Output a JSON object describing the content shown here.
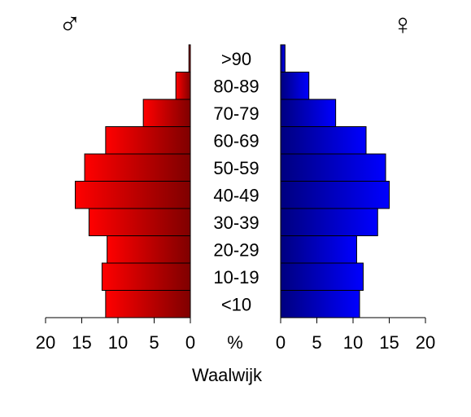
{
  "chart_data": {
    "type": "bar",
    "orientation": "horizontal",
    "subtype": "population-pyramid",
    "title": "Waalwijk",
    "axis_unit_label": "%",
    "categories": [
      "<10",
      "10-19",
      "20-29",
      "30-39",
      "40-49",
      "50-59",
      "60-69",
      "70-79",
      "80-89",
      ">90"
    ],
    "series": [
      {
        "name": "♂",
        "side": "left",
        "values": [
          11.7,
          12.2,
          11.5,
          14.0,
          15.9,
          14.6,
          11.7,
          6.5,
          2.0,
          0.2
        ],
        "colors": {
          "light": "#ff0000",
          "dark": "#7f0000"
        }
      },
      {
        "name": "♀",
        "side": "right",
        "values": [
          10.9,
          11.4,
          10.5,
          13.4,
          15.0,
          14.5,
          11.8,
          7.6,
          3.9,
          0.6
        ],
        "colors": {
          "light": "#0000ff",
          "dark": "#00007f"
        }
      }
    ],
    "xlim": [
      0,
      20
    ],
    "ticks": [
      0,
      5,
      10,
      15,
      20
    ],
    "tick_labels": [
      "0",
      "5",
      "10",
      "15",
      "20"
    ],
    "grid": false,
    "legend": "symbols at top-left and top-right"
  }
}
